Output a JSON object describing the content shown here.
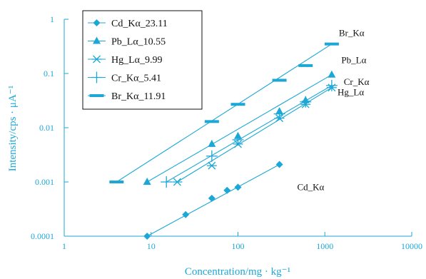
{
  "chart_data": {
    "type": "scatter",
    "xlabel": "Concentration/mg · kg⁻¹",
    "ylabel": "Intensity/cps · μA⁻¹",
    "x_scale": "log",
    "y_scale": "log",
    "xlim": [
      1,
      10000
    ],
    "ylim": [
      0.0001,
      1
    ],
    "x_tick_labels": [
      "1",
      "10",
      "100",
      "1000",
      "10000"
    ],
    "y_tick_labels": [
      "0.0001",
      "0.001",
      "0.01",
      "0.1",
      "1"
    ],
    "grid": false,
    "legend_position": "top-left",
    "color": "#1ca7d6",
    "series": [
      {
        "name": "Cd_Kα_23.11",
        "marker": "diamond",
        "x": [
          9,
          25,
          50,
          75,
          100,
          300
        ],
        "y": [
          0.0001,
          0.00025,
          0.0005,
          0.0007,
          0.0008,
          0.0021
        ],
        "fit": [
          [
            9,
            0.0001
          ],
          [
            300,
            0.0021
          ]
        ]
      },
      {
        "name": "Pb_Lα_10.55",
        "marker": "triangle",
        "x": [
          9,
          50,
          100,
          300,
          600,
          1200
        ],
        "y": [
          0.001,
          0.005,
          0.007,
          0.02,
          0.032,
          0.095
        ],
        "fit": [
          [
            9,
            0.001
          ],
          [
            1200,
            0.095
          ]
        ]
      },
      {
        "name": "Hg_Lα_9.99",
        "marker": "asterisk",
        "x": [
          20,
          50,
          100,
          300,
          600,
          1200
        ],
        "y": [
          0.001,
          0.002,
          0.005,
          0.015,
          0.027,
          0.055
        ],
        "fit": [
          [
            20,
            0.001
          ],
          [
            1200,
            0.055
          ]
        ]
      },
      {
        "name": "Cr_Kα_5.41",
        "marker": "plus",
        "x": [
          15,
          50,
          100,
          300,
          600,
          1200
        ],
        "y": [
          0.001,
          0.003,
          0.006,
          0.018,
          0.03,
          0.06
        ],
        "fit": [
          [
            15,
            0.001
          ],
          [
            1200,
            0.06
          ]
        ]
      },
      {
        "name": "Br_Kα_11.91",
        "marker": "dash",
        "x": [
          4,
          50,
          100,
          300,
          600,
          1200
        ],
        "y": [
          0.001,
          0.013,
          0.027,
          0.075,
          0.14,
          0.35
        ],
        "fit": [
          [
            4,
            0.001
          ],
          [
            1200,
            0.35
          ]
        ]
      }
    ],
    "annotations": [
      {
        "text": "Br_Kα",
        "x": 1450,
        "y": 0.55
      },
      {
        "text": "Pb_Lα",
        "x": 1550,
        "y": 0.175
      },
      {
        "text": "Cr_Kα",
        "x": 1650,
        "y": 0.07
      },
      {
        "text": "Hg_Lα",
        "x": 1400,
        "y": 0.045
      },
      {
        "text": "Cd_Kα",
        "x": 480,
        "y": 0.0008
      }
    ]
  }
}
